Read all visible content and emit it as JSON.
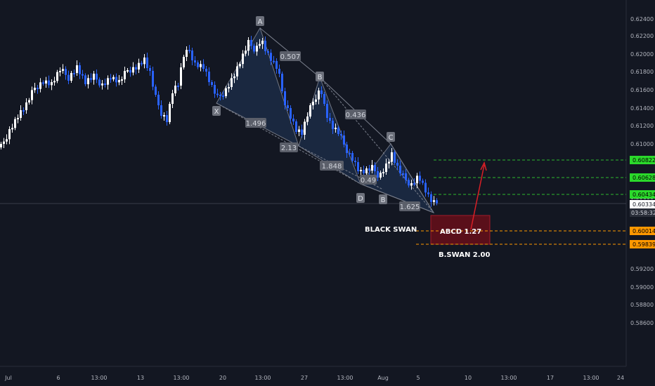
{
  "colors": {
    "background": "#131722",
    "axis_text": "#b2b5be",
    "grid": "#1e222d",
    "candle_up": "#ffffff",
    "candle_down": "#2962ff",
    "pattern_fill": "#1b2a44",
    "pattern_line": "#7a7f8c",
    "point_label_bg": "#6d717c",
    "ratio_label_bg": "#5b5f6a",
    "target_line": "#2eb82e",
    "target_badge": "#2bd92b",
    "entry_line": "#ff9800",
    "entry_badge": "#ff9800",
    "zone_fill": "#5a0f1a",
    "zone_border": "#a21b2b",
    "arrow": "#d81f26",
    "current_badge_bg": "#ffffff",
    "time_badge_bg": "#2a2e39"
  },
  "y_axis": {
    "ticks": [
      "0.62400",
      "0.62200",
      "0.62000",
      "0.61800",
      "0.61600",
      "0.61400",
      "0.61200",
      "0.61000",
      "0.60800",
      "0.60600",
      "0.60400",
      "0.60200",
      "0.59800",
      "0.59600",
      "0.59400",
      "0.59200",
      "0.59000",
      "0.58800",
      "0.58600"
    ]
  },
  "x_axis": {
    "ticks": [
      "Jul",
      "6",
      "13:00",
      "13",
      "13:00",
      "20",
      "13:00",
      "27",
      "13:00",
      "Aug",
      "5",
      "10",
      "13:00",
      "17",
      "13:00",
      "24"
    ]
  },
  "price_badges": {
    "target1": "0.60822",
    "target2": "0.60628",
    "target3": "0.60434",
    "current": "0.60334",
    "countdown": "03:58:32",
    "entry1": "0.60014",
    "entry2": "0.59839"
  },
  "pattern_points": {
    "X": "X",
    "A": "A",
    "B": "B",
    "C": "C",
    "D1": "D",
    "B2": "B",
    "D2": "D"
  },
  "ratios": {
    "r1": "0.507",
    "r2": "0.436",
    "r3": "1.496",
    "r4": "2.13",
    "r5": "1.848",
    "r6": "0.49",
    "r7": "1.625"
  },
  "annotations": {
    "black_swan": "BLACK SWAN",
    "abcd": "ABCD 1.27",
    "bswan": "B.SWAN 2.00"
  }
}
